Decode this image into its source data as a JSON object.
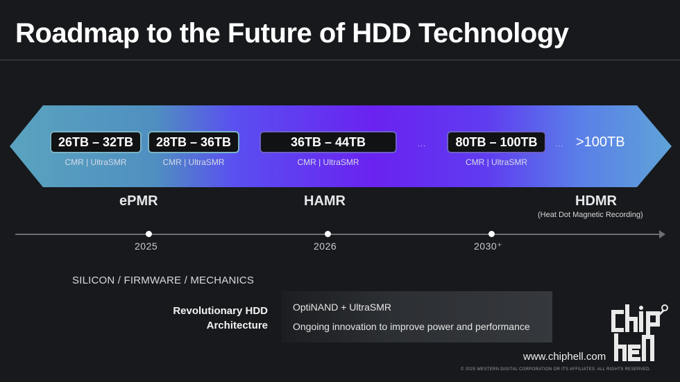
{
  "title": "Roadmap to the Future of HDD Technology",
  "colors": {
    "bg": "#17191c",
    "banner_left": "#5a9fbd",
    "banner_mid": "#6a2bf0",
    "banner_right": "#5e8fe0",
    "capsule_border": "#7bb4c7"
  },
  "capacities": [
    {
      "label": "26TB – 32TB",
      "sub": "CMR | UltraSMR"
    },
    {
      "label": "28TB – 36TB",
      "sub": "CMR | UltraSMR"
    },
    {
      "label": "36TB – 44TB",
      "sub": "CMR | UltraSMR"
    },
    {
      "label": "80TB – 100TB",
      "sub": "CMR | UltraSMR"
    }
  ],
  "ellipsis": "...",
  "final_capacity": ">100TB",
  "technologies": [
    {
      "name": "ePMR"
    },
    {
      "name": "HAMR"
    },
    {
      "name": "HDMR",
      "sub": "(Heat Dot Magnetic Recording)"
    }
  ],
  "timeline": [
    "2025",
    "2026",
    "2030⁺"
  ],
  "section_label": "SILICON / FIRMWARE / MECHANICS",
  "architecture": {
    "label_line1": "Revolutionary HDD",
    "label_line2": "Architecture",
    "line1": "OptiNAND + UltraSMR",
    "line2": "Ongoing innovation to improve power and performance"
  },
  "watermark": "www.chiphell.com",
  "logo_text": "chip hell",
  "copyright": "© 2025 WESTERN DIGITAL CORPORATION OR ITS AFFILIATES. ALL RIGHTS RESERVED."
}
